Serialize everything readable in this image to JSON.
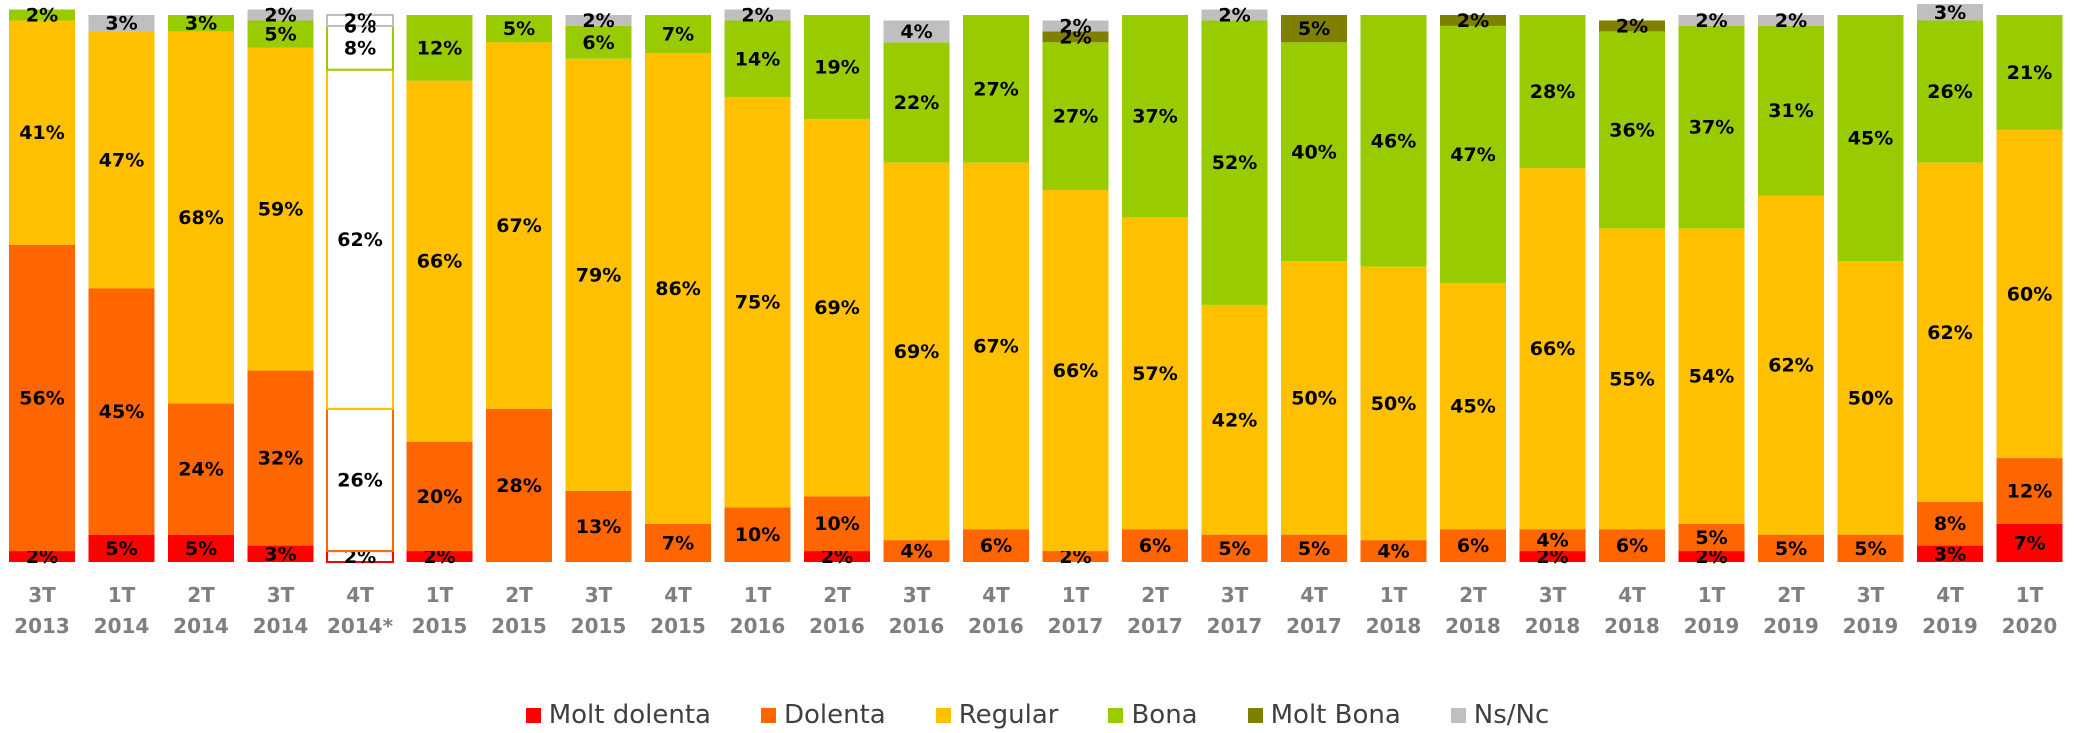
{
  "chart_data": {
    "type": "stacked_bar",
    "categories": [
      "3T 2013",
      "1T 2014",
      "2T 2014",
      "3T 2014",
      "4T 2014*",
      "1T 2015",
      "2T 2015",
      "3T 2015",
      "4T 2015",
      "1T 2016",
      "2T 2016",
      "3T 2016",
      "4T 2016",
      "1T 2017",
      "2T 2017",
      "3T 2017",
      "4T 2017",
      "1T 2018",
      "2T 2018",
      "3T 2018",
      "4T 2018",
      "1T 2019",
      "2T 2019",
      "3T 2019",
      "4T 2019",
      "1T 2020"
    ],
    "legend": "bottom",
    "series": [
      {
        "name": "Molt dolenta",
        "color": "#ff0000",
        "values": [
          2,
          5,
          5,
          3,
          2,
          2,
          null,
          null,
          null,
          null,
          2,
          null,
          null,
          null,
          null,
          null,
          null,
          null,
          null,
          2,
          null,
          2,
          null,
          null,
          3,
          7
        ],
        "value_labels": [
          "2%",
          "5%",
          "5%",
          "3%",
          "2%",
          "2%",
          null,
          null,
          null,
          null,
          "2%",
          null,
          null,
          null,
          null,
          null,
          null,
          null,
          null,
          "2%",
          null,
          "2%",
          null,
          null,
          "3%",
          "7%"
        ]
      },
      {
        "name": "Dolenta",
        "color": "#ff6600",
        "values": [
          56,
          45,
          24,
          32,
          26,
          20,
          28,
          13,
          7,
          10,
          10,
          4,
          6,
          2,
          6,
          5,
          5,
          4,
          6,
          4,
          6,
          5,
          5,
          5,
          8,
          12
        ],
        "value_labels": [
          "56%",
          "45%",
          "24%",
          "32%",
          "26%",
          "20%",
          "28%",
          "13%",
          "7%",
          "10%",
          "10%",
          "4%",
          "6%",
          "2%",
          "6%",
          "5%",
          "5%",
          "4%",
          "6%",
          "4%",
          "6%",
          "5%",
          "5%",
          "5%",
          "8%",
          "12%"
        ]
      },
      {
        "name": "Regular",
        "color": "#ffc000",
        "values": [
          41,
          47,
          68,
          59,
          62,
          66,
          67,
          79,
          86,
          75,
          69,
          69,
          67,
          66,
          57,
          42,
          50,
          50,
          45,
          66,
          55,
          54,
          62,
          50,
          62,
          60
        ],
        "value_labels": [
          "41%",
          "47%",
          "68%",
          "59%",
          "62%",
          "66%",
          "67%",
          "79%",
          "86%",
          "75%",
          "69%",
          "69%",
          "67%",
          "66%",
          "57%",
          "42%",
          "50%",
          "50%",
          "45%",
          "66%",
          "55%",
          "54%",
          "62%",
          "50%",
          "62%",
          "60%"
        ]
      },
      {
        "name": "Bona",
        "color": "#99cc00",
        "values": [
          2,
          null,
          3,
          5,
          8,
          12,
          5,
          6,
          7,
          14,
          19,
          22,
          27,
          27,
          37,
          52,
          40,
          46,
          47,
          28,
          36,
          37,
          31,
          45,
          26,
          21
        ],
        "value_labels": [
          "2%",
          null,
          "3%",
          "5%",
          "8%",
          "12%",
          "5%",
          "6%",
          "7%",
          "14%",
          "19%",
          "22%",
          "27%",
          "27%",
          "37%",
          "52%",
          "40%",
          "46%",
          "47%",
          "28%",
          "36%",
          "37%",
          "31%",
          "45%",
          "26%",
          "21%"
        ]
      },
      {
        "name": "Molt Bona",
        "color": "#808000",
        "values": [
          null,
          null,
          null,
          null,
          0,
          null,
          null,
          null,
          null,
          null,
          null,
          null,
          null,
          2,
          null,
          null,
          5,
          null,
          2,
          null,
          2,
          null,
          null,
          null,
          null,
          null
        ],
        "value_labels": [
          null,
          null,
          null,
          null,
          "0%",
          null,
          null,
          null,
          null,
          null,
          null,
          null,
          null,
          "2%",
          null,
          null,
          "5%",
          null,
          "2%",
          null,
          "2%",
          null,
          null,
          null,
          null,
          null
        ]
      },
      {
        "name": "Ns/Nc",
        "color": "#bfbfbf",
        "values": [
          null,
          3,
          null,
          2,
          2,
          null,
          null,
          2,
          null,
          2,
          null,
          4,
          null,
          2,
          null,
          2,
          null,
          null,
          null,
          null,
          null,
          2,
          2,
          null,
          3,
          null
        ],
        "value_labels": [
          null,
          "3%",
          null,
          "2%",
          "2%",
          null,
          null,
          "2%",
          null,
          "2%",
          null,
          "4%",
          null,
          "2%",
          null,
          "2%",
          null,
          null,
          null,
          null,
          null,
          "2%",
          "2%",
          null,
          "3%",
          null
        ]
      }
    ]
  }
}
